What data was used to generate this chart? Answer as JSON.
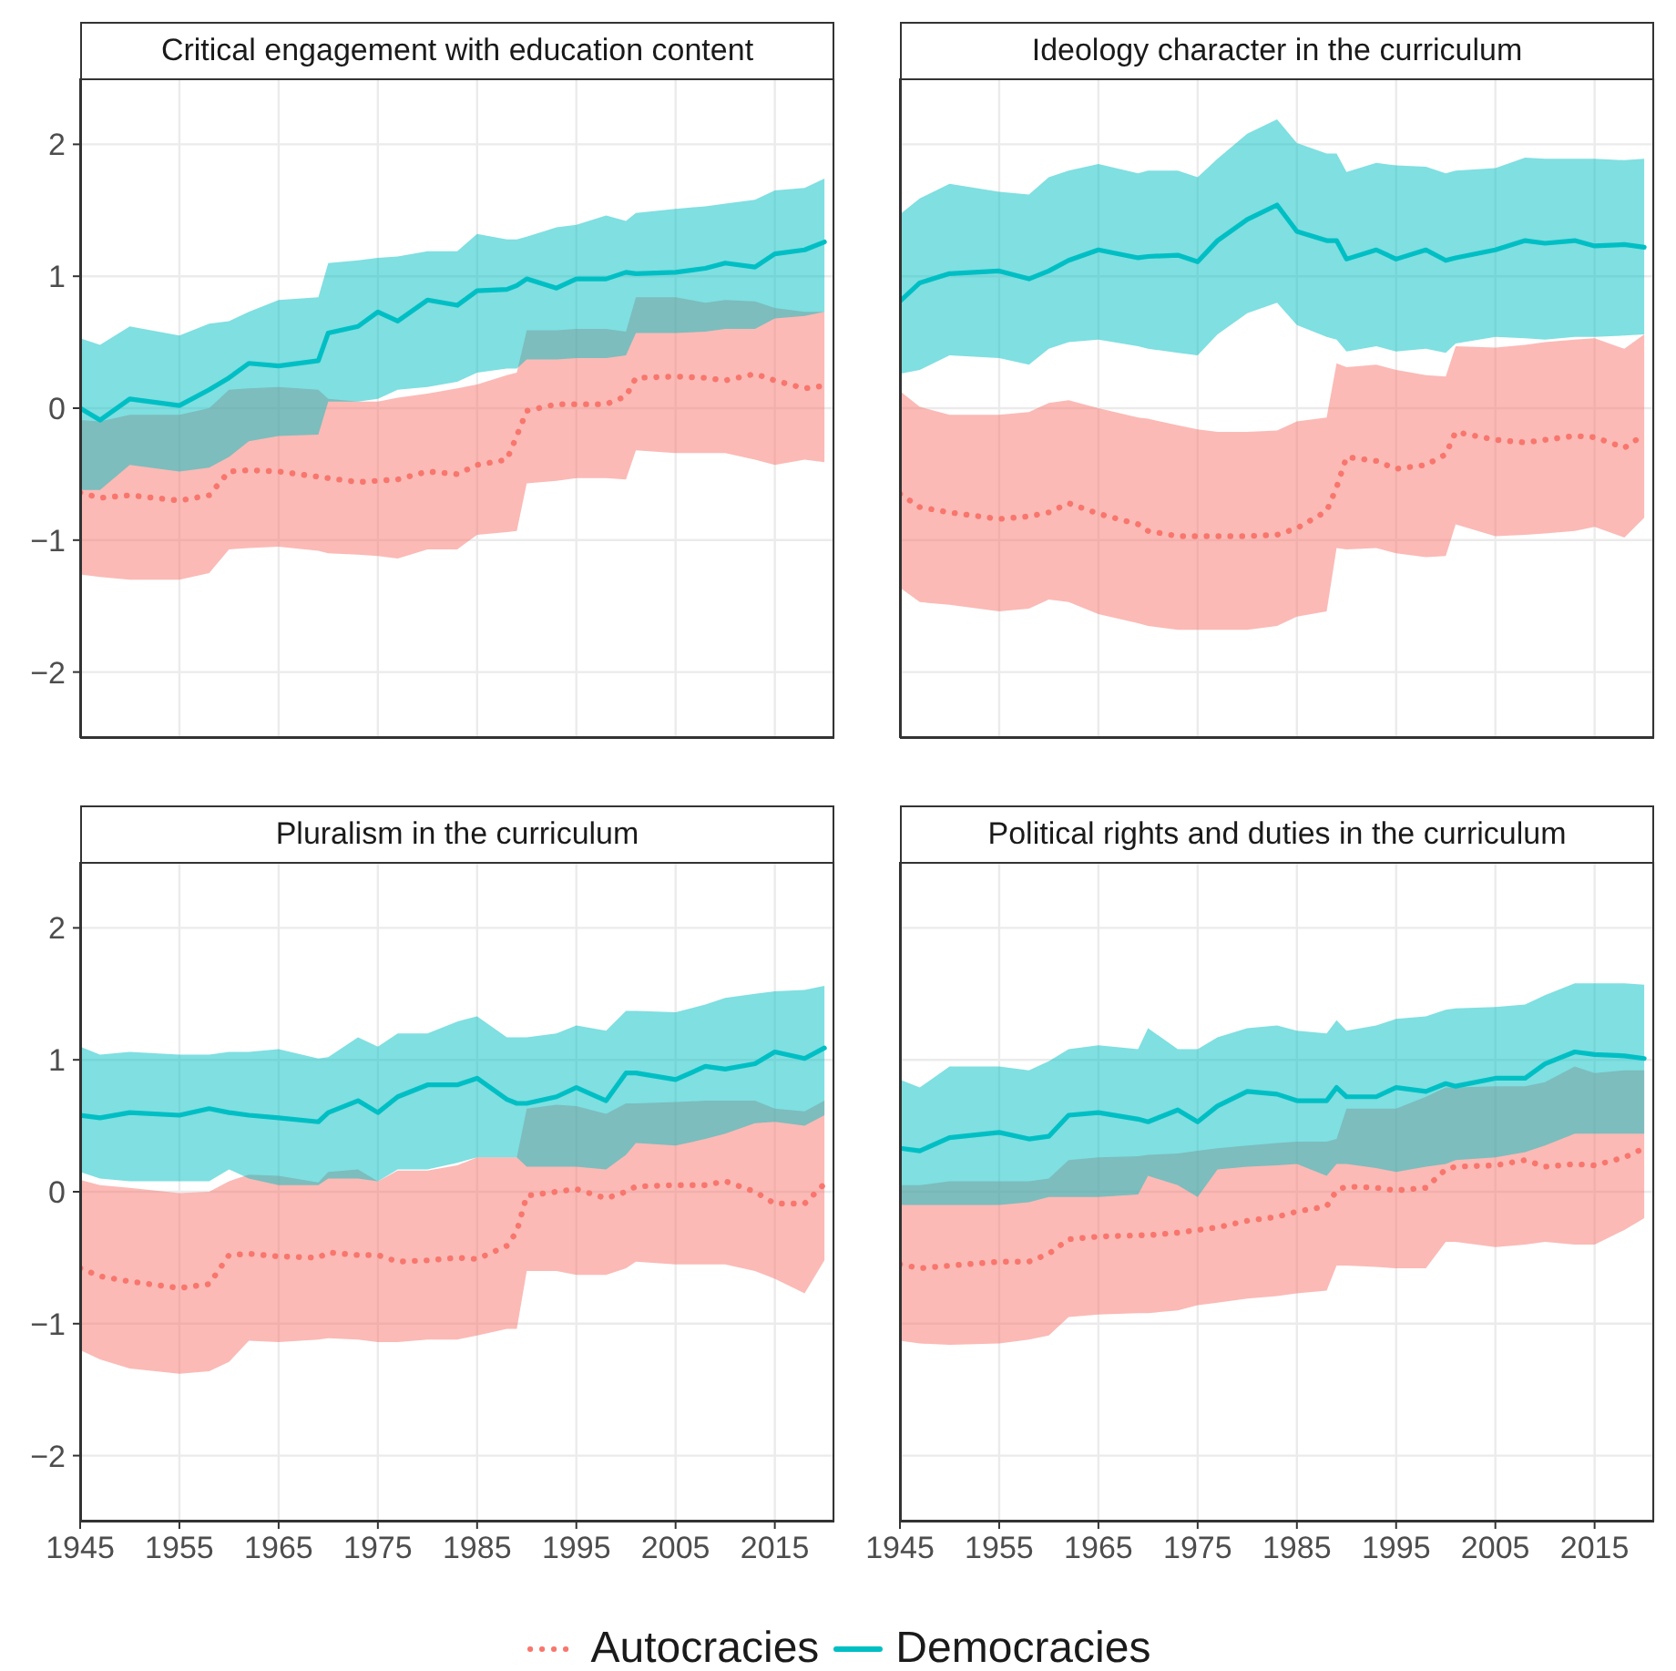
{
  "chart_data": [
    {
      "type": "line",
      "title": "Critical engagement with education content",
      "x": [
        1945,
        1947,
        1950,
        1955,
        1958,
        1960,
        1962,
        1965,
        1969,
        1970,
        1973,
        1975,
        1977,
        1980,
        1983,
        1985,
        1988,
        1989,
        1990,
        1993,
        1995,
        1998,
        2000,
        2001,
        2005,
        2008,
        2010,
        2013,
        2015,
        2018,
        2020
      ],
      "xlim": [
        1945,
        2021
      ],
      "xticks": [
        1945,
        1955,
        1965,
        1975,
        1985,
        1995,
        2005,
        2015
      ],
      "ylim": [
        -2.5,
        2.5
      ],
      "yticks": [
        -2,
        -1,
        0,
        1,
        2
      ],
      "grid": true,
      "tick_labels": "y",
      "legend": "bottom",
      "series": [
        {
          "name": "Autocracies",
          "color": "#f8766d",
          "line_style": "dotted",
          "values": [
            -0.64,
            -0.68,
            -0.66,
            -0.7,
            -0.66,
            -0.48,
            -0.47,
            -0.48,
            -0.52,
            -0.53,
            -0.56,
            -0.55,
            -0.54,
            -0.48,
            -0.5,
            -0.43,
            -0.39,
            -0.21,
            -0.02,
            0.03,
            0.03,
            0.03,
            0.09,
            0.23,
            0.24,
            0.23,
            0.21,
            0.26,
            0.21,
            0.15,
            0.17
          ],
          "lower": [
            -1.26,
            -1.28,
            -1.3,
            -1.3,
            -1.25,
            -1.07,
            -1.06,
            -1.05,
            -1.08,
            -1.1,
            -1.11,
            -1.12,
            -1.14,
            -1.07,
            -1.07,
            -0.96,
            -0.94,
            -0.93,
            -0.57,
            -0.55,
            -0.53,
            -0.53,
            -0.54,
            -0.32,
            -0.34,
            -0.34,
            -0.34,
            -0.39,
            -0.43,
            -0.39,
            -0.41
          ],
          "upper": [
            -0.09,
            -0.1,
            -0.05,
            -0.05,
            0,
            0.14,
            0.15,
            0.16,
            0.14,
            0.07,
            0.05,
            0.05,
            0.08,
            0.11,
            0.15,
            0.18,
            0.25,
            0.27,
            0.59,
            0.59,
            0.6,
            0.6,
            0.58,
            0.84,
            0.84,
            0.8,
            0.82,
            0.81,
            0.76,
            0.73,
            0.73
          ]
        },
        {
          "name": "Democracies",
          "color": "#00bfc4",
          "line_style": "solid",
          "values": [
            0,
            -0.09,
            0.07,
            0.02,
            0.14,
            0.23,
            0.34,
            0.32,
            0.36,
            0.57,
            0.62,
            0.73,
            0.66,
            0.82,
            0.78,
            0.89,
            0.9,
            0.93,
            0.98,
            0.91,
            0.98,
            0.98,
            1.03,
            1.02,
            1.03,
            1.06,
            1.1,
            1.07,
            1.17,
            1.2,
            1.26
          ],
          "lower": [
            -0.62,
            -0.62,
            -0.43,
            -0.48,
            -0.45,
            -0.37,
            -0.25,
            -0.21,
            -0.2,
            0.05,
            0.05,
            0.07,
            0.14,
            0.16,
            0.2,
            0.27,
            0.3,
            0.3,
            0.37,
            0.37,
            0.38,
            0.38,
            0.4,
            0.57,
            0.57,
            0.58,
            0.6,
            0.6,
            0.68,
            0.7,
            0.73
          ],
          "upper": [
            0.53,
            0.48,
            0.62,
            0.55,
            0.64,
            0.66,
            0.73,
            0.82,
            0.84,
            1.1,
            1.12,
            1.14,
            1.15,
            1.19,
            1.19,
            1.32,
            1.28,
            1.28,
            1.3,
            1.37,
            1.39,
            1.46,
            1.42,
            1.48,
            1.51,
            1.53,
            1.55,
            1.58,
            1.65,
            1.67,
            1.74
          ]
        }
      ]
    },
    {
      "type": "line",
      "title": "Ideology character in the curriculum",
      "x": [
        1945,
        1947,
        1950,
        1955,
        1958,
        1960,
        1962,
        1965,
        1969,
        1970,
        1973,
        1975,
        1977,
        1980,
        1983,
        1985,
        1988,
        1989,
        1990,
        1993,
        1995,
        1998,
        2000,
        2001,
        2005,
        2008,
        2010,
        2013,
        2015,
        2018,
        2020
      ],
      "xlim": [
        1945,
        2021
      ],
      "xticks": [
        1945,
        1955,
        1965,
        1975,
        1985,
        1995,
        2005,
        2015
      ],
      "ylim": [
        -2.5,
        2.5
      ],
      "yticks": [
        -2,
        -1,
        0,
        1,
        2
      ],
      "grid": true,
      "tick_labels": false,
      "series": [
        {
          "color": "#f8766d",
          "line_style": "dotted",
          "values": [
            -0.65,
            -0.75,
            -0.79,
            -0.84,
            -0.82,
            -0.79,
            -0.72,
            -0.8,
            -0.88,
            -0.93,
            -0.97,
            -0.97,
            -0.97,
            -0.97,
            -0.96,
            -0.91,
            -0.78,
            -0.6,
            -0.37,
            -0.4,
            -0.46,
            -0.43,
            -0.35,
            -0.18,
            -0.24,
            -0.26,
            -0.24,
            -0.21,
            -0.22,
            -0.3,
            -0.2
          ],
          "lower": [
            -1.36,
            -1.47,
            -1.49,
            -1.54,
            -1.52,
            -1.45,
            -1.47,
            -1.56,
            -1.63,
            -1.65,
            -1.68,
            -1.68,
            -1.68,
            -1.68,
            -1.65,
            -1.58,
            -1.54,
            -1.06,
            -1.07,
            -1.06,
            -1.1,
            -1.13,
            -1.12,
            -0.88,
            -0.97,
            -0.96,
            -0.95,
            -0.93,
            -0.9,
            -0.98,
            -0.83
          ],
          "upper": [
            0.13,
            0.01,
            -0.05,
            -0.05,
            -0.03,
            0.04,
            0.06,
            0,
            -0.07,
            -0.08,
            -0.13,
            -0.16,
            -0.18,
            -0.18,
            -0.17,
            -0.1,
            -0.07,
            0.34,
            0.31,
            0.33,
            0.29,
            0.25,
            0.24,
            0.47,
            0.46,
            0.48,
            0.5,
            0.52,
            0.53,
            0.45,
            0.56
          ]
        },
        {
          "color": "#00bfc4",
          "line_style": "solid",
          "values": [
            0.81,
            0.95,
            1.02,
            1.04,
            0.98,
            1.04,
            1.12,
            1.2,
            1.14,
            1.15,
            1.16,
            1.11,
            1.27,
            1.43,
            1.54,
            1.34,
            1.27,
            1.27,
            1.13,
            1.2,
            1.13,
            1.2,
            1.12,
            1.14,
            1.2,
            1.27,
            1.25,
            1.27,
            1.23,
            1.24,
            1.22
          ],
          "lower": [
            0.26,
            0.29,
            0.4,
            0.38,
            0.33,
            0.45,
            0.5,
            0.52,
            0.47,
            0.45,
            0.42,
            0.4,
            0.56,
            0.72,
            0.8,
            0.63,
            0.54,
            0.52,
            0.43,
            0.47,
            0.43,
            0.45,
            0.42,
            0.49,
            0.54,
            0.53,
            0.52,
            0.54,
            0.54,
            0.55,
            0.56
          ],
          "upper": [
            1.47,
            1.59,
            1.7,
            1.64,
            1.62,
            1.75,
            1.8,
            1.85,
            1.78,
            1.8,
            1.8,
            1.75,
            1.89,
            2.08,
            2.19,
            2.01,
            1.93,
            1.93,
            1.79,
            1.86,
            1.84,
            1.83,
            1.78,
            1.8,
            1.82,
            1.9,
            1.89,
            1.89,
            1.89,
            1.88,
            1.89
          ]
        }
      ]
    },
    {
      "type": "line",
      "title": "Pluralism in the curriculum",
      "x": [
        1945,
        1947,
        1950,
        1955,
        1958,
        1960,
        1962,
        1965,
        1969,
        1970,
        1973,
        1975,
        1977,
        1980,
        1983,
        1985,
        1988,
        1989,
        1990,
        1993,
        1995,
        1998,
        2000,
        2001,
        2005,
        2008,
        2010,
        2013,
        2015,
        2018,
        2020
      ],
      "xlim": [
        1945,
        2021
      ],
      "xticks": [
        1945,
        1955,
        1965,
        1975,
        1985,
        1995,
        2005,
        2015
      ],
      "ylim": [
        -2.5,
        2.5
      ],
      "yticks": [
        -2,
        -1,
        0,
        1,
        2
      ],
      "grid": true,
      "series": [
        {
          "color": "#f8766d",
          "line_style": "dotted",
          "values": [
            -0.58,
            -0.64,
            -0.68,
            -0.73,
            -0.7,
            -0.48,
            -0.47,
            -0.49,
            -0.5,
            -0.46,
            -0.48,
            -0.48,
            -0.53,
            -0.52,
            -0.5,
            -0.51,
            -0.41,
            -0.3,
            -0.03,
            0,
            0.02,
            -0.05,
            0,
            0.04,
            0.05,
            0.05,
            0.08,
            0,
            -0.09,
            -0.09,
            0.06
          ],
          "lower": [
            -1.2,
            -1.27,
            -1.34,
            -1.38,
            -1.36,
            -1.29,
            -1.13,
            -1.14,
            -1.12,
            -1.11,
            -1.12,
            -1.14,
            -1.14,
            -1.12,
            -1.12,
            -1.09,
            -1.04,
            -1.04,
            -0.6,
            -0.6,
            -0.63,
            -0.63,
            -0.58,
            -0.53,
            -0.55,
            -0.55,
            -0.55,
            -0.6,
            -0.66,
            -0.77,
            -0.52
          ],
          "upper": [
            0.09,
            0.05,
            0.03,
            -0.01,
            0,
            0.08,
            0.13,
            0.12,
            0.07,
            0.15,
            0.17,
            0.08,
            0.16,
            0.16,
            0.2,
            0.26,
            0.26,
            0.26,
            0.63,
            0.66,
            0.65,
            0.59,
            0.67,
            0.67,
            0.68,
            0.69,
            0.69,
            0.69,
            0.63,
            0.61,
            0.69
          ]
        },
        {
          "color": "#00bfc4",
          "line_style": "solid",
          "values": [
            0.58,
            0.56,
            0.6,
            0.58,
            0.63,
            0.6,
            0.58,
            0.56,
            0.53,
            0.6,
            0.69,
            0.6,
            0.72,
            0.81,
            0.81,
            0.86,
            0.7,
            0.67,
            0.67,
            0.72,
            0.79,
            0.69,
            0.9,
            0.9,
            0.85,
            0.95,
            0.93,
            0.97,
            1.06,
            1.01,
            1.09
          ],
          "lower": [
            0.15,
            0.1,
            0.08,
            0.08,
            0.08,
            0.17,
            0.1,
            0.05,
            0.05,
            0.1,
            0.1,
            0.08,
            0.17,
            0.17,
            0.22,
            0.26,
            0.26,
            0.26,
            0.19,
            0.19,
            0.19,
            0.17,
            0.28,
            0.37,
            0.35,
            0.4,
            0.44,
            0.52,
            0.53,
            0.5,
            0.58
          ],
          "upper": [
            1.1,
            1.04,
            1.06,
            1.04,
            1.04,
            1.06,
            1.06,
            1.08,
            1.01,
            1.02,
            1.17,
            1.1,
            1.2,
            1.2,
            1.29,
            1.33,
            1.17,
            1.17,
            1.17,
            1.2,
            1.26,
            1.22,
            1.37,
            1.37,
            1.36,
            1.42,
            1.47,
            1.5,
            1.52,
            1.53,
            1.56
          ]
        }
      ]
    },
    {
      "type": "line",
      "title": "Political rights and duties in the curriculum",
      "x": [
        1945,
        1947,
        1950,
        1955,
        1958,
        1960,
        1962,
        1965,
        1969,
        1970,
        1973,
        1975,
        1977,
        1980,
        1983,
        1985,
        1988,
        1989,
        1990,
        1993,
        1995,
        1998,
        2000,
        2001,
        2005,
        2008,
        2010,
        2013,
        2015,
        2018,
        2020
      ],
      "xlim": [
        1945,
        2021
      ],
      "xticks": [
        1945,
        1955,
        1965,
        1975,
        1985,
        1995,
        2005,
        2015
      ],
      "ylim": [
        -2.5,
        2.5
      ],
      "yticks": [
        -2,
        -1,
        0,
        1,
        2
      ],
      "grid": true,
      "tick_labels": "x",
      "series": [
        {
          "color": "#f8766d",
          "line_style": "dotted",
          "values": [
            -0.55,
            -0.58,
            -0.56,
            -0.53,
            -0.53,
            -0.47,
            -0.36,
            -0.34,
            -0.33,
            -0.33,
            -0.31,
            -0.29,
            -0.27,
            -0.22,
            -0.19,
            -0.15,
            -0.11,
            0.01,
            0.04,
            0.03,
            0.01,
            0.03,
            0.17,
            0.19,
            0.2,
            0.24,
            0.19,
            0.21,
            0.2,
            0.26,
            0.33
          ],
          "lower": [
            -1.13,
            -1.15,
            -1.16,
            -1.15,
            -1.12,
            -1.09,
            -0.95,
            -0.93,
            -0.92,
            -0.92,
            -0.9,
            -0.86,
            -0.84,
            -0.81,
            -0.79,
            -0.77,
            -0.75,
            -0.56,
            -0.56,
            -0.57,
            -0.58,
            -0.58,
            -0.38,
            -0.38,
            -0.42,
            -0.4,
            -0.38,
            -0.4,
            -0.4,
            -0.29,
            -0.2
          ],
          "upper": [
            0.05,
            0.05,
            0.08,
            0.08,
            0.08,
            0.1,
            0.24,
            0.26,
            0.27,
            0.28,
            0.29,
            0.31,
            0.33,
            0.35,
            0.37,
            0.38,
            0.38,
            0.4,
            0.63,
            0.63,
            0.63,
            0.72,
            0.79,
            0.79,
            0.8,
            0.8,
            0.83,
            0.95,
            0.9,
            0.92,
            0.92
          ]
        },
        {
          "color": "#00bfc4",
          "line_style": "solid",
          "values": [
            0.33,
            0.31,
            0.41,
            0.45,
            0.4,
            0.42,
            0.58,
            0.6,
            0.55,
            0.53,
            0.62,
            0.53,
            0.65,
            0.76,
            0.74,
            0.69,
            0.69,
            0.79,
            0.72,
            0.72,
            0.79,
            0.76,
            0.82,
            0.8,
            0.86,
            0.86,
            0.97,
            1.06,
            1.04,
            1.03,
            1.01
          ],
          "lower": [
            -0.1,
            -0.1,
            -0.1,
            -0.1,
            -0.08,
            -0.04,
            -0.04,
            -0.04,
            -0.02,
            0.12,
            0.05,
            -0.04,
            0.17,
            0.19,
            0.2,
            0.21,
            0.12,
            0.21,
            0.21,
            0.18,
            0.15,
            0.19,
            0.21,
            0.24,
            0.26,
            0.3,
            0.35,
            0.44,
            0.44,
            0.44,
            0.44
          ],
          "upper": [
            0.85,
            0.79,
            0.95,
            0.95,
            0.92,
            0.99,
            1.08,
            1.11,
            1.08,
            1.24,
            1.08,
            1.08,
            1.17,
            1.24,
            1.26,
            1.22,
            1.2,
            1.3,
            1.22,
            1.26,
            1.31,
            1.33,
            1.38,
            1.39,
            1.4,
            1.42,
            1.49,
            1.58,
            1.58,
            1.58,
            1.57
          ]
        }
      ]
    }
  ]
}
